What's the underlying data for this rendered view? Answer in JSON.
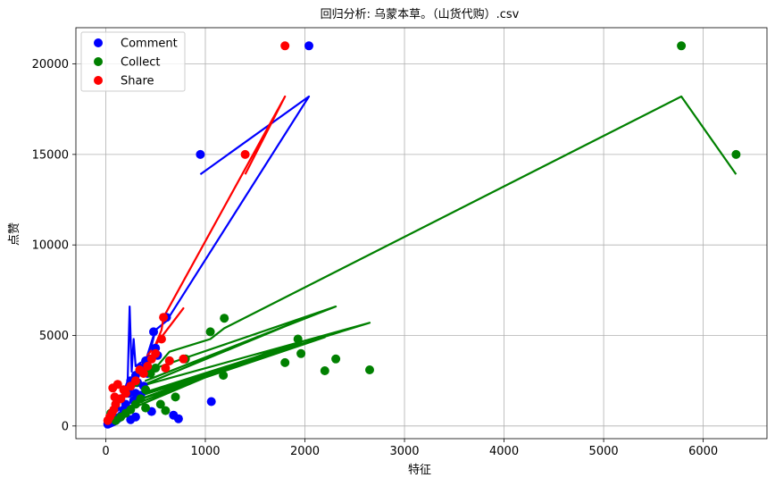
{
  "chart_data": {
    "type": "scatter",
    "title": "回归分析: 乌蒙本草。（山货代购）.csv",
    "xlabel": "特征",
    "ylabel": "点赞",
    "xlim": [
      -300,
      6640
    ],
    "ylim": [
      -700,
      22000
    ],
    "xticks": [
      0,
      1000,
      2000,
      3000,
      4000,
      5000,
      6000
    ],
    "yticks": [
      0,
      5000,
      10000,
      15000,
      20000
    ],
    "grid": true,
    "legend_position": "top-left",
    "series": [
      {
        "name": "Comment",
        "color": "#0000ff",
        "points": [
          [
            2040,
            21000
          ],
          [
            950,
            15000
          ],
          [
            610,
            6000
          ],
          [
            1060,
            1350
          ],
          [
            680,
            600
          ],
          [
            730,
            400
          ],
          [
            480,
            5200
          ],
          [
            500,
            4300
          ],
          [
            450,
            3700
          ],
          [
            520,
            3900
          ],
          [
            400,
            3600
          ],
          [
            420,
            2900
          ],
          [
            350,
            3200
          ],
          [
            300,
            2800
          ],
          [
            250,
            2500
          ],
          [
            230,
            1800
          ],
          [
            200,
            1200
          ],
          [
            180,
            900
          ],
          [
            160,
            600
          ],
          [
            140,
            500
          ],
          [
            120,
            400
          ],
          [
            100,
            300
          ],
          [
            80,
            250
          ],
          [
            60,
            200
          ],
          [
            40,
            150
          ],
          [
            20,
            100
          ],
          [
            300,
            1800
          ],
          [
            280,
            1400
          ],
          [
            350,
            1700
          ],
          [
            380,
            2200
          ],
          [
            460,
            800
          ],
          [
            300,
            500
          ],
          [
            250,
            350
          ],
          [
            450,
            3000
          ],
          [
            200,
            2000
          ],
          [
            150,
            1500
          ],
          [
            100,
            1000
          ],
          [
            320,
            2400
          ]
        ],
        "fit_path": [
          [
            950,
            13900
          ],
          [
            2040,
            18200
          ],
          [
            610,
            5800
          ],
          [
            500,
            5300
          ],
          [
            450,
            4200
          ],
          [
            480,
            5000
          ],
          [
            400,
            3600
          ],
          [
            350,
            3500
          ],
          [
            300,
            3300
          ],
          [
            280,
            4800
          ],
          [
            260,
            3000
          ],
          [
            240,
            6600
          ],
          [
            220,
            2500
          ],
          [
            200,
            2200
          ],
          [
            180,
            1900
          ],
          [
            160,
            1700
          ],
          [
            140,
            1400
          ],
          [
            120,
            1100
          ],
          [
            100,
            900
          ],
          [
            80,
            700
          ],
          [
            60,
            500
          ],
          [
            40,
            300
          ],
          [
            20,
            100
          ],
          [
            0,
            -100
          ]
        ]
      },
      {
        "name": "Collect",
        "color": "#008000",
        "points": [
          [
            5780,
            21000
          ],
          [
            6330,
            15000
          ],
          [
            1190,
            5950
          ],
          [
            1050,
            5200
          ],
          [
            1930,
            4800
          ],
          [
            1960,
            4000
          ],
          [
            2310,
            3700
          ],
          [
            1800,
            3500
          ],
          [
            2200,
            3050
          ],
          [
            2650,
            3100
          ],
          [
            1180,
            2800
          ],
          [
            800,
            3700
          ],
          [
            640,
            3600
          ],
          [
            500,
            3200
          ],
          [
            450,
            2900
          ],
          [
            400,
            2000
          ],
          [
            350,
            1500
          ],
          [
            300,
            1200
          ],
          [
            250,
            900
          ],
          [
            200,
            700
          ],
          [
            150,
            500
          ],
          [
            100,
            300
          ],
          [
            600,
            850
          ],
          [
            700,
            1600
          ],
          [
            300,
            2400
          ],
          [
            200,
            1800
          ],
          [
            100,
            1200
          ],
          [
            50,
            700
          ],
          [
            400,
            1000
          ],
          [
            550,
            1200
          ]
        ],
        "fit_path": [
          [
            6330,
            13900
          ],
          [
            5780,
            18200
          ],
          [
            1190,
            5400
          ],
          [
            1050,
            4800
          ],
          [
            640,
            4100
          ],
          [
            500,
            3200
          ],
          [
            2310,
            6600
          ],
          [
            400,
            2500
          ],
          [
            1930,
            5800
          ],
          [
            350,
            2200
          ],
          [
            2650,
            5700
          ],
          [
            300,
            1700
          ],
          [
            1960,
            4600
          ],
          [
            250,
            1500
          ],
          [
            2200,
            4900
          ],
          [
            200,
            1200
          ],
          [
            1800,
            4400
          ],
          [
            150,
            900
          ],
          [
            1180,
            3100
          ],
          [
            100,
            600
          ],
          [
            50,
            300
          ],
          [
            0,
            0
          ]
        ]
      },
      {
        "name": "Share",
        "color": "#ff0000",
        "points": [
          [
            1800,
            21000
          ],
          [
            1400,
            15000
          ],
          [
            580,
            6000
          ],
          [
            560,
            4800
          ],
          [
            500,
            4000
          ],
          [
            460,
            3700
          ],
          [
            780,
            3700
          ],
          [
            640,
            3600
          ],
          [
            600,
            3200
          ],
          [
            420,
            3300
          ],
          [
            380,
            2900
          ],
          [
            300,
            2500
          ],
          [
            250,
            2200
          ],
          [
            200,
            1800
          ],
          [
            150,
            1500
          ],
          [
            100,
            1200
          ],
          [
            80,
            900
          ],
          [
            60,
            700
          ],
          [
            40,
            500
          ],
          [
            20,
            300
          ],
          [
            70,
            2100
          ],
          [
            120,
            2300
          ],
          [
            340,
            3100
          ],
          [
            180,
            2000
          ],
          [
            90,
            1600
          ]
        ],
        "fit_path": [
          [
            1400,
            13900
          ],
          [
            1800,
            18200
          ],
          [
            580,
            6000
          ],
          [
            560,
            5300
          ],
          [
            500,
            4500
          ],
          [
            460,
            4200
          ],
          [
            780,
            6500
          ],
          [
            420,
            3900
          ],
          [
            380,
            3500
          ],
          [
            340,
            3200
          ],
          [
            300,
            2800
          ],
          [
            250,
            2400
          ],
          [
            200,
            2000
          ],
          [
            150,
            1600
          ],
          [
            100,
            1200
          ],
          [
            50,
            800
          ],
          [
            0,
            300
          ]
        ]
      }
    ]
  }
}
